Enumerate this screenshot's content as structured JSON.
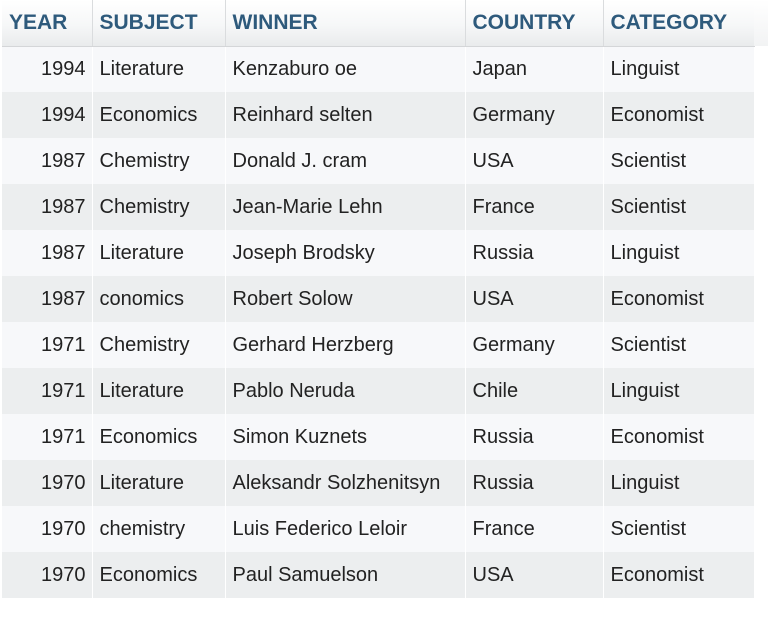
{
  "table": {
    "headers": [
      "YEAR",
      "SUBJECT",
      "WINNER",
      "COUNTRY",
      "CATEGORY"
    ],
    "rows": [
      [
        "1994",
        "Literature",
        "Kenzaburo oe",
        "Japan",
        "Linguist"
      ],
      [
        "1994",
        "Economics",
        "Reinhard selten",
        "Germany",
        "Economist"
      ],
      [
        "1987",
        "Chemistry",
        "Donald J. cram",
        "USA",
        "Scientist"
      ],
      [
        "1987",
        "Chemistry",
        "Jean-Marie Lehn",
        "France",
        "Scientist"
      ],
      [
        "1987",
        "Literature",
        "Joseph Brodsky",
        "Russia",
        "Linguist"
      ],
      [
        "1987",
        "conomics",
        "Robert Solow",
        "USA",
        "Economist"
      ],
      [
        "1971",
        "Chemistry",
        "Gerhard Herzberg",
        "Germany",
        "Scientist"
      ],
      [
        "1971",
        "Literature",
        "Pablo Neruda",
        "Chile",
        "Linguist"
      ],
      [
        "1971",
        "Economics",
        "Simon Kuznets",
        "Russia",
        "Economist"
      ],
      [
        "1970",
        "Literature",
        "Aleksandr Solzhenitsyn",
        "Russia",
        "Linguist"
      ],
      [
        "1970",
        "chemistry",
        "Luis Federico Leloir",
        "France",
        "Scientist"
      ],
      [
        "1970",
        "Economics",
        "Paul Samuelson",
        "USA",
        "Economist"
      ]
    ]
  },
  "colors": {
    "header_text": "#2e5a7c",
    "row_odd": "#f7f8fa",
    "row_even": "#eceeef",
    "cell_text": "#222222"
  }
}
